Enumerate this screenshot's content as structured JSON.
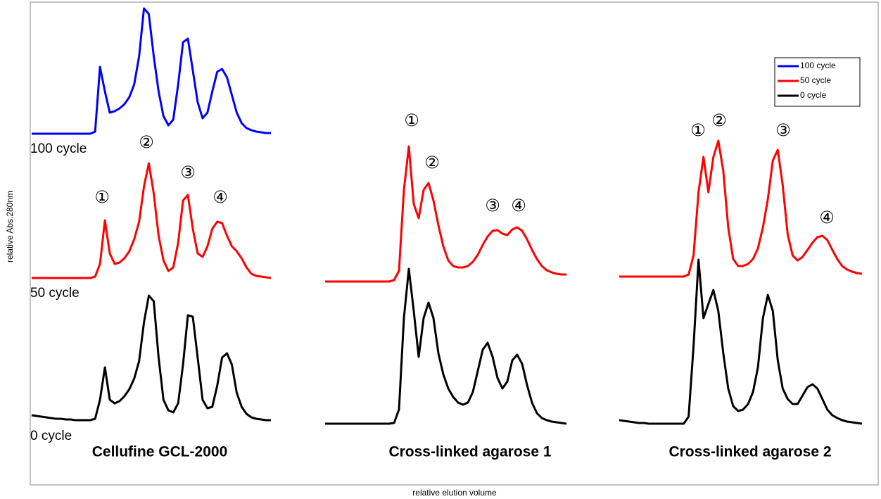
{
  "chart_data": {
    "type": "line",
    "ylabel": "relative Abs.280nm",
    "xlabel": "relative elution volume",
    "ylim": [
      0,
      200
    ],
    "legend_position": "upper right",
    "legend": [
      {
        "name": "100 cycle",
        "color": "#0000ff"
      },
      {
        "name": "50 cycle",
        "color": "#ff0000"
      },
      {
        "name": "0 cycle",
        "color": "#000000"
      }
    ],
    "panels": [
      {
        "title": "Cellufine GCL-2000",
        "peak_labels": [
          "①",
          "②",
          "③",
          "④"
        ],
        "series": [
          {
            "name": "100 cycle",
            "color": "#0000ff",
            "values": [
              0,
              0,
              0,
              0,
              0,
              0,
              0,
              0,
              0,
              0,
              0,
              0,
              0,
              3,
              95,
              60,
              30,
              32,
              36,
              42,
              52,
              70,
              110,
              178,
              170,
              110,
              60,
              25,
              12,
              20,
              70,
              130,
              135,
              90,
              45,
              22,
              30,
              60,
              88,
              92,
              80,
              55,
              30,
              15,
              8,
              5,
              3,
              2,
              1,
              1
            ]
          },
          {
            "name": "50 cycle",
            "color": "#ff0000",
            "values": [
              0,
              0,
              0,
              0,
              0,
              0,
              0,
              0,
              0,
              0,
              0,
              0,
              0,
              2,
              20,
              82,
              35,
              20,
              22,
              28,
              38,
              55,
              80,
              130,
              163,
              120,
              60,
              25,
              10,
              15,
              50,
              110,
              118,
              70,
              35,
              30,
              45,
              70,
              80,
              78,
              60,
              45,
              38,
              28,
              15,
              6,
              3,
              2,
              1,
              0
            ]
          },
          {
            "name": "0 cycle",
            "color": "#000000",
            "values": [
              8,
              7,
              6,
              5,
              4,
              3,
              3,
              2,
              2,
              1,
              1,
              1,
              1,
              3,
              30,
              76,
              30,
              25,
              28,
              35,
              45,
              60,
              85,
              140,
              178,
              170,
              90,
              30,
              15,
              12,
              25,
              80,
              150,
              148,
              90,
              30,
              18,
              20,
              50,
              90,
              96,
              80,
              40,
              20,
              10,
              5,
              3,
              2,
              1,
              1
            ]
          }
        ]
      },
      {
        "title": "Cross-linked agarose 1",
        "peak_labels": [
          "①",
          "②",
          "③",
          "④"
        ],
        "series": [
          {
            "color": "#ff0000",
            "values": [
              0,
              0,
              0,
              0,
              0,
              0,
              0,
              0,
              0,
              0,
              0,
              0,
              0,
              0,
              2,
              15,
              130,
              192,
              110,
              90,
              130,
              140,
              115,
              80,
              50,
              30,
              22,
              20,
              20,
              22,
              28,
              38,
              52,
              64,
              72,
              73,
              68,
              66,
              74,
              77,
              72,
              60,
              45,
              32,
              22,
              16,
              13,
              11,
              10,
              10
            ]
          },
          {
            "color": "#000000",
            "values": [
              0,
              0,
              0,
              0,
              0,
              0,
              0,
              0,
              0,
              0,
              0,
              0,
              0,
              0,
              1,
              20,
              150,
              220,
              160,
              95,
              150,
              172,
              150,
              100,
              70,
              50,
              38,
              30,
              27,
              30,
              45,
              75,
              105,
              115,
              95,
              65,
              50,
              60,
              90,
              98,
              85,
              55,
              30,
              15,
              8,
              5,
              3,
              2,
              1,
              0
            ]
          }
        ]
      },
      {
        "title": "Cross-linked agarose 2",
        "peak_labels": [
          "①",
          "②",
          "③",
          "④"
        ],
        "series": [
          {
            "color": "#ff0000",
            "values": [
              0,
              0,
              0,
              0,
              0,
              0,
              0,
              0,
              0,
              0,
              0,
              0,
              0,
              0,
              3,
              30,
              120,
              170,
              120,
              170,
              193,
              150,
              70,
              25,
              15,
              15,
              18,
              25,
              40,
              70,
              110,
              165,
              180,
              130,
              60,
              30,
              23,
              28,
              38,
              48,
              56,
              58,
              52,
              38,
              25,
              15,
              10,
              7,
              5,
              4
            ]
          },
          {
            "color": "#000000",
            "values": [
              5,
              4,
              3,
              2,
              1,
              1,
              0,
              0,
              0,
              0,
              0,
              0,
              0,
              0,
              10,
              110,
              233,
              150,
              170,
              190,
              160,
              100,
              50,
              25,
              18,
              20,
              28,
              45,
              80,
              150,
              183,
              160,
              90,
              50,
              35,
              28,
              28,
              40,
              52,
              56,
              50,
              35,
              20,
              12,
              8,
              5,
              3,
              2,
              1,
              0
            ]
          }
        ]
      }
    ]
  }
}
